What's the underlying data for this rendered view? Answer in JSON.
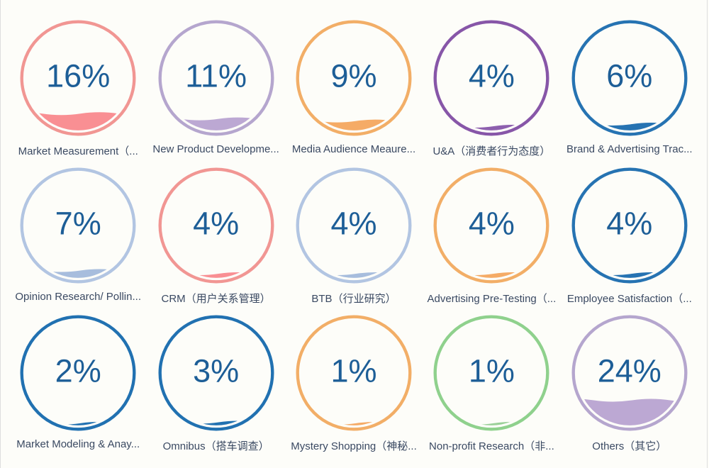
{
  "page": {
    "background_color": "#fdfdf9",
    "edge_border_color": "#dedede"
  },
  "chart_data": {
    "type": "liquid-fill-gauge-grid",
    "columns": 5,
    "rows": 3,
    "unit": "%",
    "value_color": "#1d5e97",
    "label_color": "#3a4962",
    "items": [
      {
        "label": "Market Measurement（...",
        "value": 16,
        "display": "16%",
        "ring_color": "#f19693",
        "fill_color": "#f98f93"
      },
      {
        "label": "New Product Developme...",
        "value": 11,
        "display": "11%",
        "ring_color": "#b5a6ce",
        "fill_color": "#bca8d3"
      },
      {
        "label": "Media Audience Meaure...",
        "value": 9,
        "display": "9%",
        "ring_color": "#f2ae67",
        "fill_color": "#f5ab66"
      },
      {
        "label": "U&A（消费者行为态度）",
        "value": 4,
        "display": "4%",
        "ring_color": "#8756a8",
        "fill_color": "#8d5fae"
      },
      {
        "label": "Brand & Advertising Trac...",
        "value": 6,
        "display": "6%",
        "ring_color": "#2673b2",
        "fill_color": "#2673b2"
      },
      {
        "label": "Opinion Research/ Pollin...",
        "value": 7,
        "display": "7%",
        "ring_color": "#b2c5e2",
        "fill_color": "#a7bddd"
      },
      {
        "label": "CRM（用户关系管理）",
        "value": 4,
        "display": "4%",
        "ring_color": "#f19693",
        "fill_color": "#f98f93"
      },
      {
        "label": "BTB（行业研究）",
        "value": 4,
        "display": "4%",
        "ring_color": "#b2c5e2",
        "fill_color": "#a7bddd"
      },
      {
        "label": "Advertising Pre-Testing（...",
        "value": 4,
        "display": "4%",
        "ring_color": "#f2ae67",
        "fill_color": "#f5ab66"
      },
      {
        "label": "Employee Satisfaction（...",
        "value": 4,
        "display": "4%",
        "ring_color": "#2673b2",
        "fill_color": "#2673b2"
      },
      {
        "label": "Market Modeling & Anay...",
        "value": 2,
        "display": "2%",
        "ring_color": "#2171b1",
        "fill_color": "#2171b1"
      },
      {
        "label": "Omnibus（搭车调查）",
        "value": 3,
        "display": "3%",
        "ring_color": "#2171b1",
        "fill_color": "#2171b1"
      },
      {
        "label": "Mystery Shopping（神秘...",
        "value": 1,
        "display": "1%",
        "ring_color": "#f2ae67",
        "fill_color": "#f5ab66"
      },
      {
        "label": "Non-profit Research（非...",
        "value": 1,
        "display": "1%",
        "ring_color": "#8fd18d",
        "fill_color": "#9ad098"
      },
      {
        "label": "Others（其它）",
        "value": 24,
        "display": "24%",
        "ring_color": "#b5a6ce",
        "fill_color": "#bca8d3"
      }
    ]
  }
}
